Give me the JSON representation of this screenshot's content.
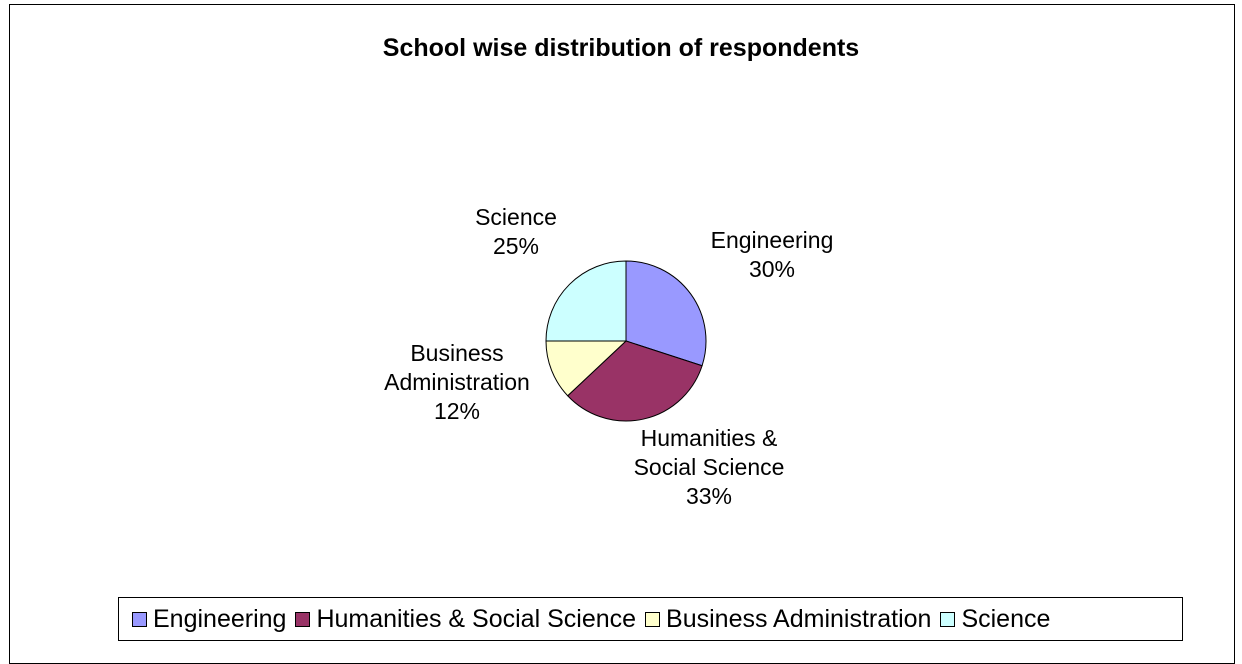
{
  "chart_data": {
    "type": "pie",
    "title": "School wise distribution of respondents",
    "categories": [
      "Engineering",
      "Humanities & Social Science",
      "Business Administration",
      "Science"
    ],
    "values": [
      30,
      33,
      12,
      25
    ],
    "value_labels": [
      "30%",
      "33%",
      "12%",
      "25%"
    ],
    "slice_label_lines": [
      [
        "Engineering",
        "30%"
      ],
      [
        "Humanities &",
        "Social Science",
        "33%"
      ],
      [
        "Business",
        "Administration",
        "12%"
      ],
      [
        "Science",
        "25%"
      ]
    ],
    "colors": [
      "#9999ff",
      "#993366",
      "#ffffcc",
      "#ccffff"
    ],
    "start_angle_deg": 0,
    "direction": "clockwise",
    "legend_position": "bottom"
  }
}
